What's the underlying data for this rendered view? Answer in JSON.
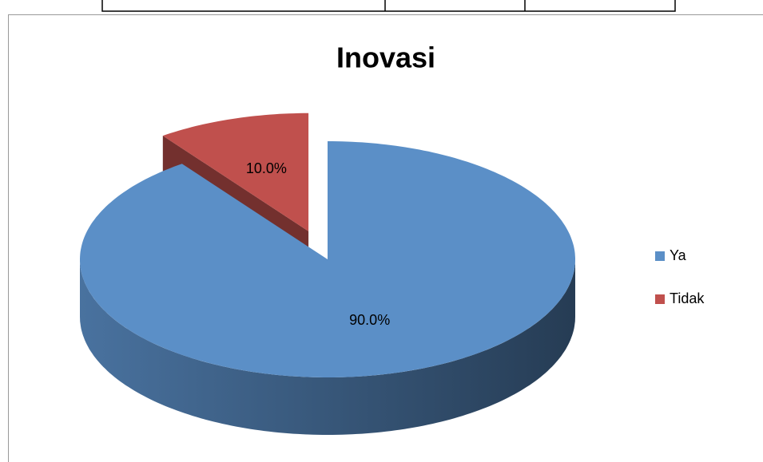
{
  "chart_data": {
    "type": "pie",
    "title": "Inovasi",
    "categories": [
      "Ya",
      "Tidak"
    ],
    "values": [
      90,
      10
    ],
    "value_labels": [
      "90.0%",
      "10.0%"
    ],
    "colors": [
      "#5b8fc7",
      "#c0504d"
    ],
    "legend": "right"
  }
}
